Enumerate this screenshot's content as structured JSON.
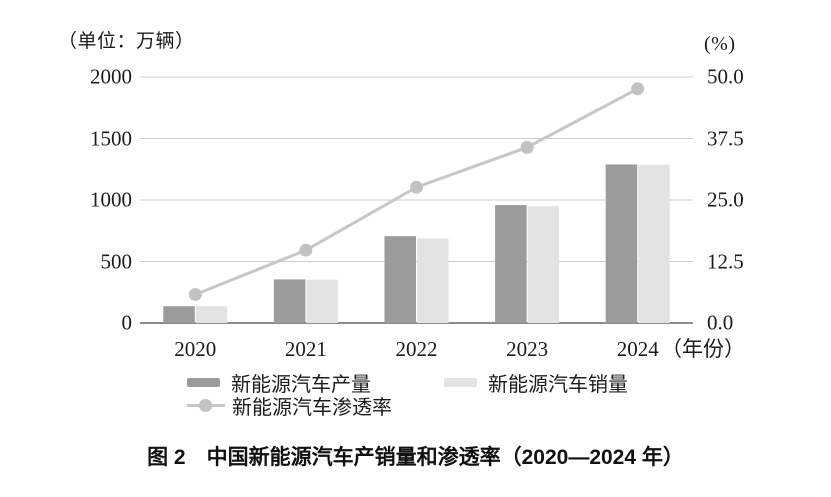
{
  "figure": {
    "caption_prefix": "图 2",
    "caption_text": "中国新能源汽车产销量和渗透率（2020—2024 年）"
  },
  "colors": {
    "production_bar": "#9b9b9b",
    "sales_bar": "#e3e3e3",
    "penetration_line": "#c7c7c7",
    "penetration_dot": "#c2c2c2",
    "gridline": "#cdcdcd",
    "axis_line": "#8c8c8c",
    "text": "#1c1c1c"
  },
  "chart_data": {
    "type": "bar+line",
    "categories": [
      "2020",
      "2021",
      "2022",
      "2023",
      "2024"
    ],
    "series": [
      {
        "name": "新能源汽车产量",
        "type": "bar",
        "axis": "left",
        "unit": "万辆",
        "values": [
          136.6,
          354.5,
          705.8,
          958.7,
          1288.8
        ]
      },
      {
        "name": "新能源汽车销量",
        "type": "bar",
        "axis": "left",
        "unit": "万辆",
        "values": [
          136.7,
          352.1,
          688.7,
          949.5,
          1286.6
        ]
      },
      {
        "name": "新能源汽车渗透率",
        "type": "line",
        "axis": "right",
        "unit": "%",
        "values": [
          5.8,
          14.8,
          27.6,
          35.7,
          47.6
        ]
      }
    ],
    "left_axis": {
      "label": "（单位：万辆）",
      "range": [
        0,
        2000
      ],
      "ticks": [
        "0",
        "500",
        "1000",
        "1500",
        "2000"
      ]
    },
    "right_axis": {
      "label": "(%)",
      "range": [
        0,
        50
      ],
      "ticks": [
        "0.0",
        "12.5",
        "25.0",
        "37.5",
        "50.0"
      ]
    },
    "x_axis": {
      "label": "（年份）"
    },
    "grid": "horizontal",
    "legend_position": "bottom"
  }
}
